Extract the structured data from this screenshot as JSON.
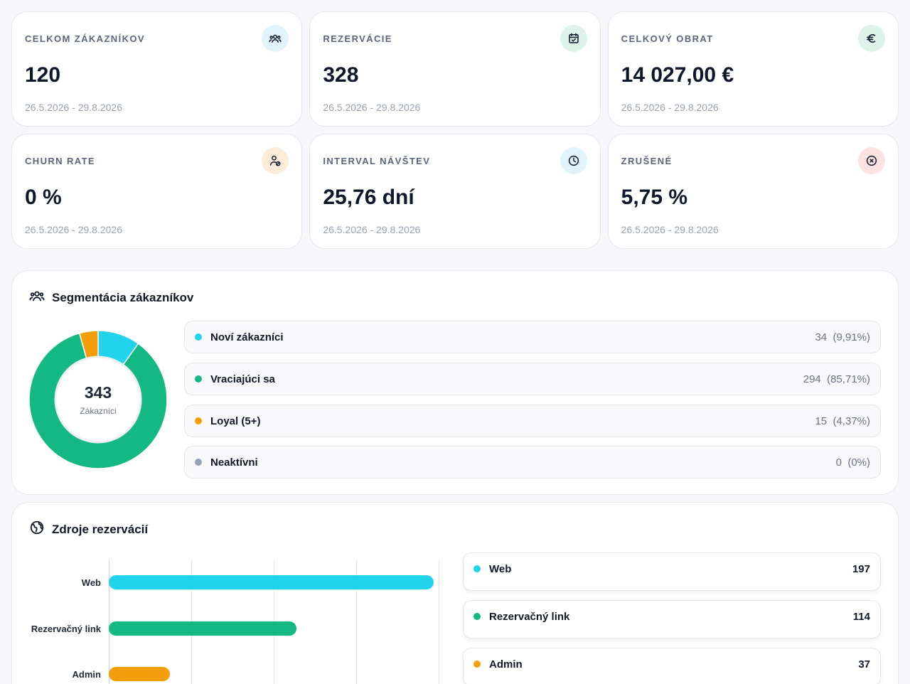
{
  "stats": [
    {
      "label": "CELKOM ZÁKAZNÍKOV",
      "value": "120",
      "range": "26.5.2026 - 29.8.2026",
      "icon": "users-icon",
      "icon_bg": "#e0f5fb",
      "icon_color": "#0f172a"
    },
    {
      "label": "REZERVÁCIE",
      "value": "328",
      "range": "26.5.2026 - 29.8.2026",
      "icon": "calendar-check-icon",
      "icon_bg": "#dcf3ea",
      "icon_color": "#0f172a"
    },
    {
      "label": "CELKOVÝ OBRAT",
      "value": "14 027,00 €",
      "range": "26.5.2026 - 29.8.2026",
      "icon": "euro-icon",
      "icon_bg": "#dcf3ea",
      "icon_color": "#0f172a"
    },
    {
      "label": "CHURN RATE",
      "value": "0 %",
      "range": "26.5.2026 - 29.8.2026",
      "icon": "user-off-icon",
      "icon_bg": "#fdecd8",
      "icon_color": "#0f172a"
    },
    {
      "label": "INTERVAL NÁVŠTEV",
      "value": "25,76 dní",
      "range": "26.5.2026 - 29.8.2026",
      "icon": "clock-icon",
      "icon_bg": "#e0f5fb",
      "icon_color": "#0f172a"
    },
    {
      "label": "ZRUŠENÉ",
      "value": "5,75 %",
      "range": "26.5.2026 - 29.8.2026",
      "icon": "x-circle-icon",
      "icon_bg": "#fde2e2",
      "icon_color": "#0f172a"
    }
  ],
  "segmentation": {
    "title": "Segmentácia zákazníkov",
    "icon": "users-icon",
    "donut": {
      "total": "343",
      "label": "Zákazníci"
    },
    "items": [
      {
        "name": "Noví zákazníci",
        "count": "34",
        "percent": "(9,91%)",
        "value": 34,
        "color": "#22d3ee"
      },
      {
        "name": "Vraciajúci sa",
        "count": "294",
        "percent": "(85,71%)",
        "value": 294,
        "color": "#14b882"
      },
      {
        "name": "Loyal (5+)",
        "count": "15",
        "percent": "(4,37%)",
        "value": 15,
        "color": "#f59e0b"
      },
      {
        "name": "Neaktívni",
        "count": "0",
        "percent": "(0%)",
        "value": 0,
        "color": "#94a3b8"
      }
    ]
  },
  "sources": {
    "title": "Zdroje rezervácií",
    "icon": "globe-icon",
    "items": [
      {
        "name": "Web",
        "value": "197",
        "color": "#22d3ee"
      },
      {
        "name": "Rezervačný link",
        "value": "114",
        "color": "#14b882"
      },
      {
        "name": "Admin",
        "value": "37",
        "color": "#f59e0b"
      }
    ]
  },
  "chart_data": {
    "type": "bar",
    "orientation": "horizontal",
    "categories": [
      "Web",
      "Rezervačný link",
      "Admin"
    ],
    "values": [
      197,
      114,
      37
    ],
    "xlim": [
      0,
      200
    ],
    "grid": true
  }
}
